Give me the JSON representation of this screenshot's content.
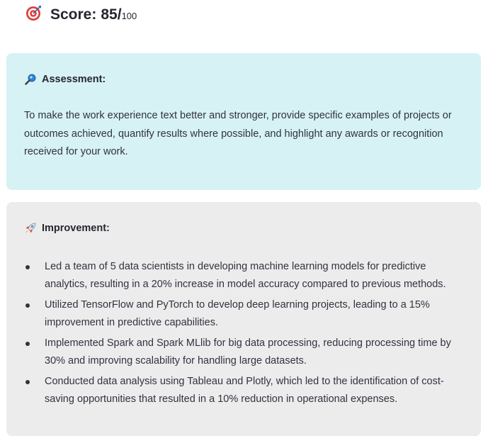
{
  "score": {
    "icon": "target-dart-icon",
    "label": "Score:",
    "value": "85/",
    "max": "100"
  },
  "assessment": {
    "icon": "magnifier-icon",
    "heading": "Assessment:",
    "text": "To make the work experience text better and stronger, provide specific examples of projects or outcomes achieved, quantify results where possible, and highlight any awards or recognition received for your work.",
    "background": "#d6f2f4"
  },
  "improvement": {
    "icon": "rocket-icon",
    "heading": "Improvement:",
    "background": "#ececec",
    "items": [
      "Led a team of 5 data scientists in developing machine learning models for predictive analytics, resulting in a 20% increase in model accuracy compared to previous methods.",
      "Utilized TensorFlow and PyTorch to develop deep learning projects, leading to a 15% improvement in predictive capabilities.",
      "Implemented Spark and Spark MLlib for big data processing, reducing processing time by 30% and improving scalability for handling large datasets.",
      "Conducted data analysis using Tableau and Plotly, which led to the identification of cost-saving opportunities that resulted in a 10% reduction in operational expenses."
    ]
  }
}
